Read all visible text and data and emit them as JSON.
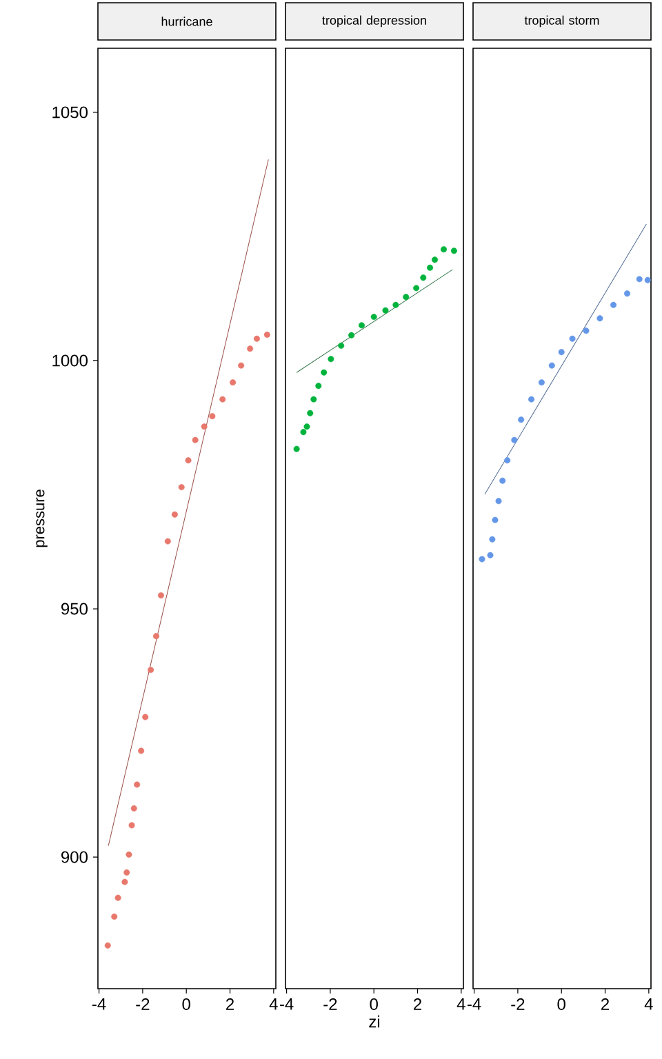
{
  "chart_data": [
    {
      "type": "scatter",
      "title": "hurricane",
      "ylabel": "pressure",
      "xlim": [
        -4.05,
        4.1
      ],
      "ylim": [
        873.5,
        1062.9
      ],
      "xticks": [
        -4,
        -2,
        0,
        2,
        4
      ],
      "yticks": [
        900,
        950,
        1000,
        1050
      ],
      "grid": false,
      "series": [
        {
          "color": "#e8776c",
          "x": [
            -3.6,
            -3.3,
            -3.13,
            -2.82,
            -2.73,
            -2.63,
            -2.5,
            -2.4,
            -2.26,
            -2.07,
            -1.88,
            -1.63,
            -1.38,
            -1.16,
            -0.85,
            -0.53,
            -0.22,
            0.09,
            0.41,
            0.82,
            1.19,
            1.66,
            2.13,
            2.51,
            2.92,
            3.23,
            3.7
          ],
          "values": [
            882.2,
            888,
            891.8,
            895,
            896.9,
            900.5,
            906.4,
            909.8,
            914.6,
            921.4,
            928.2,
            937.7,
            944.5,
            952.7,
            963.6,
            969,
            974.5,
            979.9,
            984,
            986.7,
            988.8,
            992.2,
            995.6,
            999,
            1002.4,
            1004.4,
            1005.2
          ]
        },
        {
          "type": "line",
          "color": "#9a5048",
          "x": [
            -3.57,
            3.76
          ],
          "values": [
            902.3,
            1040.5
          ]
        }
      ]
    },
    {
      "type": "scatter",
      "title": "tropical depression",
      "xlabel": "zi",
      "xlim": [
        -4.05,
        4.1
      ],
      "ylim": [
        873.5,
        1062.9
      ],
      "xticks": [
        -4,
        -2,
        0,
        2,
        4
      ],
      "tick_labels": "x",
      "grid": false,
      "series": [
        {
          "color": "#00b33c",
          "x": [
            -3.54,
            -3.23,
            -3.07,
            -2.92,
            -2.76,
            -2.54,
            -2.29,
            -1.97,
            -1.5,
            -1.03,
            -0.56,
            0,
            0.53,
            1.0,
            1.47,
            1.94,
            2.26,
            2.57,
            2.79,
            3.2,
            3.67
          ],
          "values": [
            982.2,
            985.6,
            986.7,
            989.4,
            992.2,
            994.9,
            997.6,
            1000.3,
            1003,
            1005.1,
            1007.1,
            1008.8,
            1010.1,
            1011.2,
            1012.8,
            1014.6,
            1016.7,
            1018.7,
            1020.3,
            1022.4,
            1022.1
          ]
        },
        {
          "type": "line",
          "color": "#3a7a50",
          "x": [
            -3.54,
            3.6
          ],
          "values": [
            997.6,
            1018.3
          ]
        }
      ]
    },
    {
      "type": "scatter",
      "title": "tropical storm",
      "xlim": [
        -4.05,
        4.1
      ],
      "ylim": [
        873.5,
        1062.9
      ],
      "xticks": [
        -4,
        -2,
        0,
        2,
        4
      ],
      "tick_labels": "x",
      "grid": false,
      "series": [
        {
          "color": "#6497e8",
          "x": [
            -3.64,
            -3.26,
            -3.17,
            -3.04,
            -2.88,
            -2.7,
            -2.48,
            -2.16,
            -1.85,
            -1.38,
            -0.91,
            -0.44,
            0,
            0.5,
            1.13,
            1.76,
            2.38,
            3.01,
            3.57,
            3.95
          ],
          "values": [
            960,
            960.8,
            964,
            967.9,
            971.7,
            975.8,
            979.9,
            984,
            988.1,
            992.2,
            995.6,
            999,
            1001.7,
            1004.4,
            1006,
            1008.5,
            1011.2,
            1013.5,
            1016.4,
            1016.2
          ]
        },
        {
          "type": "line",
          "color": "#4f6a92",
          "x": [
            -3.51,
            3.89
          ],
          "values": [
            973.1,
            1027.5
          ]
        }
      ]
    }
  ]
}
